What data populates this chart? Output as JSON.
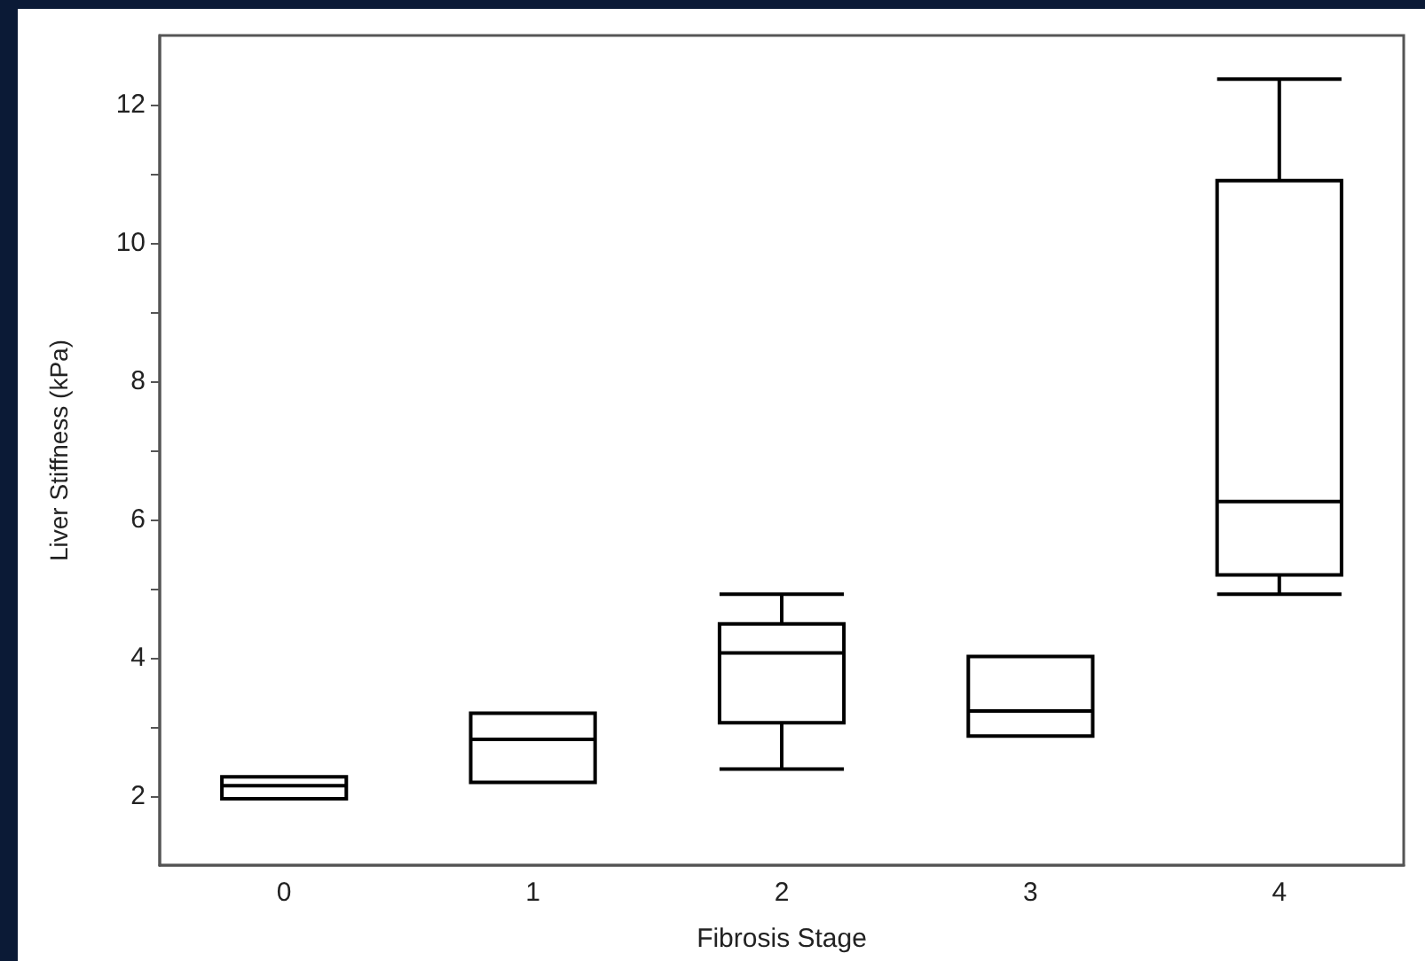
{
  "chart_data": {
    "type": "box",
    "xlabel": "Fibrosis Stage",
    "ylabel": "Liver Stiffness (kPa)",
    "categories": [
      "0",
      "1",
      "2",
      "3",
      "4"
    ],
    "boxes": [
      {
        "low": 1.96,
        "q1": 1.96,
        "median": 2.15,
        "q3": 2.28,
        "high": 2.28
      },
      {
        "low": 2.2,
        "q1": 2.2,
        "median": 2.82,
        "q3": 3.2,
        "high": 3.2
      },
      {
        "low": 2.39,
        "q1": 3.06,
        "median": 4.07,
        "q3": 4.49,
        "high": 4.92
      },
      {
        "low": 2.87,
        "q1": 2.87,
        "median": 3.23,
        "q3": 4.02,
        "high": 4.02
      },
      {
        "low": 4.92,
        "q1": 5.2,
        "median": 6.26,
        "q3": 10.9,
        "high": 12.37
      }
    ],
    "color": "#000000",
    "ylim": [
      1,
      13
    ],
    "yticks": [
      2,
      {
        "value": 3,
        "label": null
      },
      4,
      {
        "value": 5,
        "label": null
      },
      6,
      {
        "value": 7,
        "label": null
      },
      8,
      {
        "value": 9,
        "label": null
      },
      10,
      {
        "value": 11,
        "label": null
      },
      12
    ]
  }
}
